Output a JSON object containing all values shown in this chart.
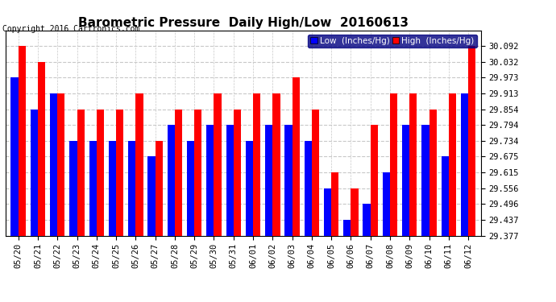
{
  "title": "Barometric Pressure  Daily High/Low  20160613",
  "copyright": "Copyright 2016 Cartronics.com",
  "legend_low": "Low  (Inches/Hg)",
  "legend_high": "High  (Inches/Hg)",
  "dates": [
    "05/20",
    "05/21",
    "05/22",
    "05/23",
    "05/24",
    "05/25",
    "05/26",
    "05/27",
    "05/28",
    "05/29",
    "05/30",
    "05/31",
    "06/01",
    "06/02",
    "06/03",
    "06/04",
    "06/05",
    "06/06",
    "06/07",
    "06/08",
    "06/09",
    "06/10",
    "06/11",
    "06/12"
  ],
  "low_values": [
    29.973,
    29.854,
    29.913,
    29.734,
    29.734,
    29.734,
    29.734,
    29.675,
    29.794,
    29.734,
    29.794,
    29.794,
    29.734,
    29.794,
    29.794,
    29.734,
    29.556,
    29.437,
    29.496,
    29.615,
    29.794,
    29.794,
    29.675,
    29.913
  ],
  "high_values": [
    30.092,
    30.032,
    29.913,
    29.854,
    29.854,
    29.854,
    29.913,
    29.734,
    29.854,
    29.854,
    29.913,
    29.854,
    29.913,
    29.913,
    29.973,
    29.854,
    29.615,
    29.556,
    29.794,
    29.913,
    29.913,
    29.854,
    29.913,
    30.092
  ],
  "ylim_min": 29.377,
  "ylim_max": 30.152,
  "yticks": [
    29.377,
    29.437,
    29.496,
    29.556,
    29.615,
    29.675,
    29.734,
    29.794,
    29.854,
    29.913,
    29.973,
    30.032,
    30.092
  ],
  "bar_width": 0.38,
  "low_color": "#0000ff",
  "high_color": "#ff0000",
  "bg_color": "#ffffff",
  "plot_bg_color": "#ffffff",
  "grid_color": "#c8c8c8",
  "title_fontsize": 11,
  "tick_fontsize": 7.5,
  "copyright_fontsize": 7,
  "legend_fontsize": 7.5
}
